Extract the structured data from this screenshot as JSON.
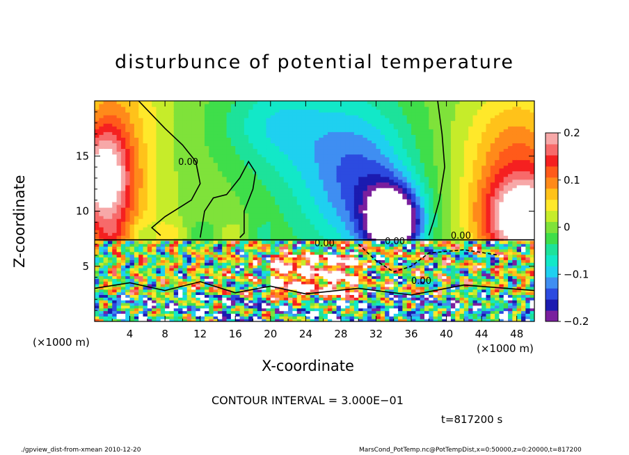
{
  "chart_data": {
    "type": "heatmap",
    "title": "disturbunce of potential temperature",
    "xlabel": "X-coordinate",
    "ylabel": "Z-coordinate",
    "x_unit_labels": [
      "(×1000 m)",
      "(×1000 m)"
    ],
    "x_ticks": [
      "4",
      "8",
      "12",
      "16",
      "20",
      "24",
      "28",
      "32",
      "36",
      "40",
      "44",
      "48"
    ],
    "y_ticks": [
      "5",
      "10",
      "15"
    ],
    "xlim": [
      0,
      50
    ],
    "ylim": [
      0,
      20
    ],
    "colorbar": {
      "range": [
        -0.2,
        0.2
      ],
      "tick_labels": [
        "0.2",
        "0.1",
        "0",
        "−0.1",
        "−0.2"
      ],
      "colors": [
        "#7a1f9e",
        "#1b1bb0",
        "#2c4be0",
        "#3f8ef2",
        "#1fd0f0",
        "#12e8c8",
        "#1de29a",
        "#3fde4a",
        "#7fe23a",
        "#c6ec2a",
        "#ffe82a",
        "#ffc21a",
        "#ff8a1a",
        "#ff5a1a",
        "#f52020",
        "#f76a6a",
        "#f7a8a8"
      ]
    },
    "contour_labels": [
      "0.00",
      "0.00",
      "0.00",
      "0.00",
      "0.00"
    ],
    "contour_interval_text": "CONTOUR INTERVAL = 3.000E−01",
    "time_text": "t=817200 s",
    "field_features": [
      {
        "x": 2,
        "z": 12,
        "value": 0.18
      },
      {
        "x": 6,
        "z": 16,
        "value": 0.1
      },
      {
        "x": 14,
        "z": 12,
        "value": 0.0
      },
      {
        "x": 24,
        "z": 16,
        "value": -0.08
      },
      {
        "x": 29,
        "z": 12,
        "value": -0.12
      },
      {
        "x": 33,
        "z": 10,
        "value": -0.18
      },
      {
        "x": 35,
        "z": 8.5,
        "value": -0.22
      },
      {
        "x": 46,
        "z": 13,
        "value": 0.14
      },
      {
        "x": 47,
        "z": 9,
        "value": 0.22
      }
    ]
  },
  "footer": {
    "left": "./gpview_dist-from-xmean  2010-12-20",
    "right": "MarsCond_PotTemp.nc@PotTempDist,x=0:50000,z=0:20000,t=817200"
  }
}
